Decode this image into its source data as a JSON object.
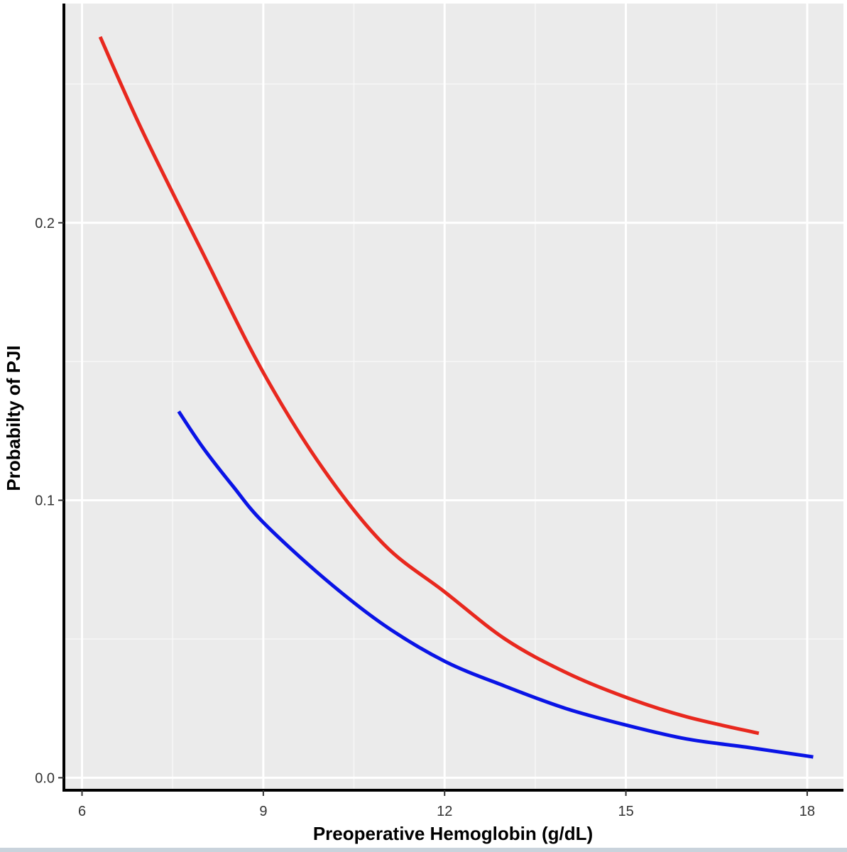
{
  "chart_data": {
    "type": "line",
    "title": "",
    "xlabel": "Preoperative Hemoglobin (g/dL)",
    "ylabel": "Probabilty of PJI",
    "xlim": [
      5.7,
      18.6
    ],
    "ylim": [
      -0.0045,
      0.279
    ],
    "x_ticks": [
      6,
      9,
      12,
      15,
      18
    ],
    "x_tick_labels": [
      "6",
      "9",
      "12",
      "15",
      "18"
    ],
    "y_ticks": [
      0.0,
      0.1,
      0.2
    ],
    "y_tick_labels": [
      "0.0",
      "0.1",
      "0.2"
    ],
    "x_minor_gridlines": [
      7.5,
      10.5,
      13.5,
      16.5
    ],
    "y_minor_gridlines": [
      0.05,
      0.15,
      0.25
    ],
    "grid": true,
    "legend": "none",
    "series": [
      {
        "color": "#e8281e",
        "x": [
          6.3,
          7,
          8,
          9,
          10,
          11,
          12,
          13,
          14,
          15,
          16,
          17.2
        ],
        "y": [
          0.267,
          0.233,
          0.189,
          0.146,
          0.111,
          0.084,
          0.067,
          0.05,
          0.038,
          0.029,
          0.022,
          0.016
        ]
      },
      {
        "color": "#0a14e6",
        "x": [
          7.6,
          8,
          8.5,
          9,
          10,
          11,
          12,
          13,
          14,
          15,
          16,
          17,
          18.1
        ],
        "y": [
          0.132,
          0.119,
          0.105,
          0.092,
          0.072,
          0.055,
          0.042,
          0.033,
          0.025,
          0.019,
          0.014,
          0.011,
          0.0075
        ]
      }
    ]
  }
}
